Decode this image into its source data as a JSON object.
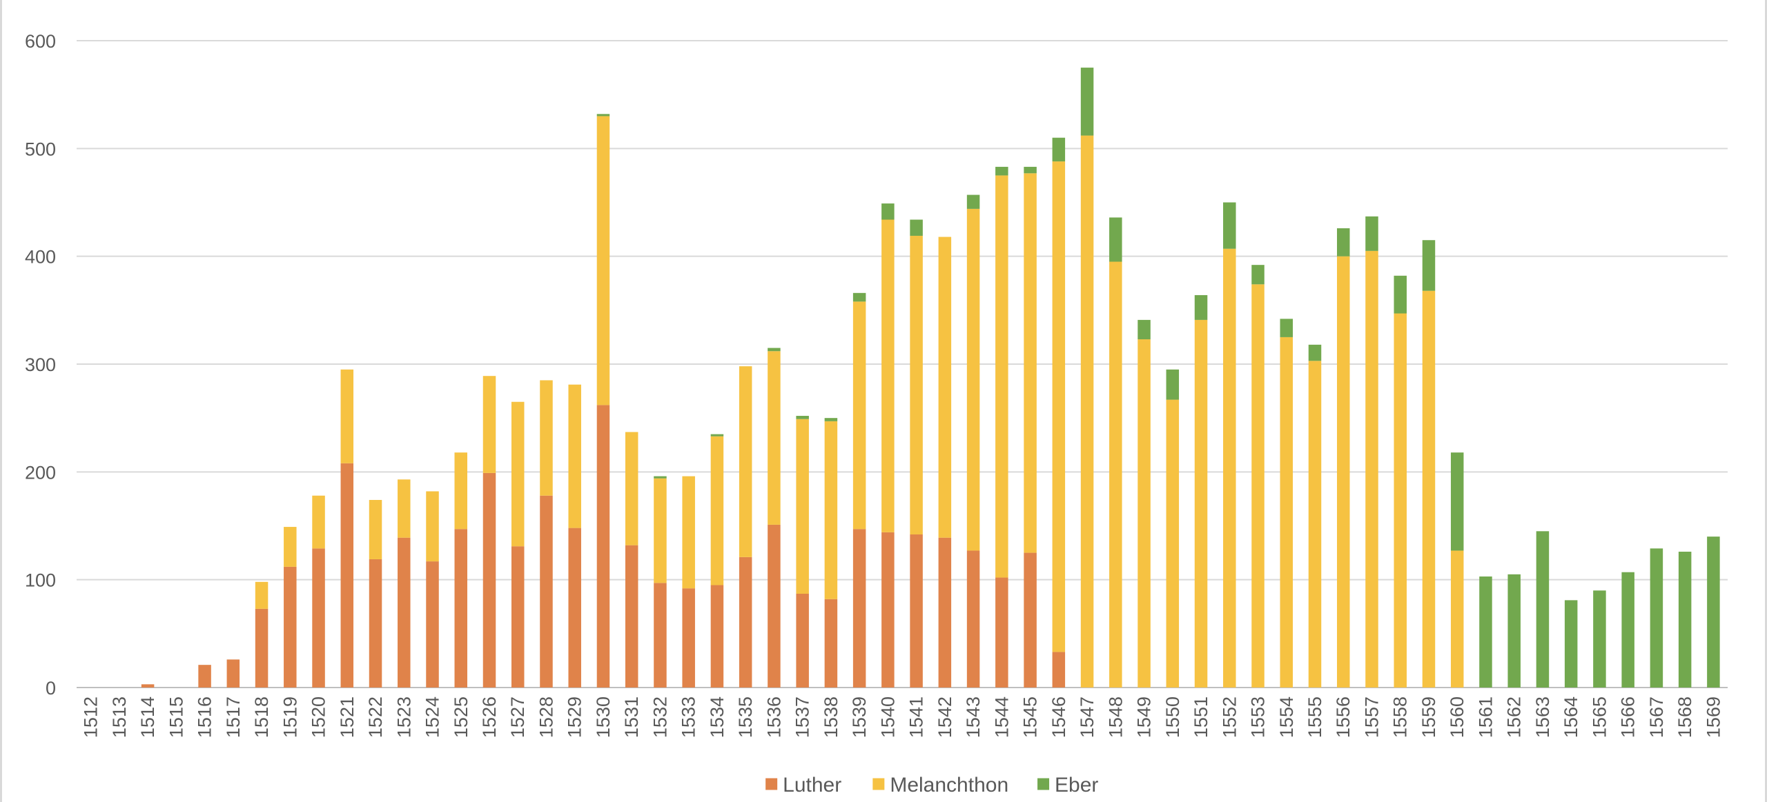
{
  "chart_data": {
    "type": "bar",
    "stacked": true,
    "title": "",
    "xlabel": "",
    "ylabel": "",
    "ylim": [
      0,
      600
    ],
    "yticks": [
      "0",
      "100",
      "200",
      "300",
      "400",
      "500",
      "600"
    ],
    "grid": true,
    "legend_position": "bottom-center",
    "categories": [
      "1512",
      "1513",
      "1514",
      "1515",
      "1516",
      "1517",
      "1518",
      "1519",
      "1520",
      "1521",
      "1522",
      "1523",
      "1524",
      "1525",
      "1526",
      "1527",
      "1528",
      "1529",
      "1530",
      "1531",
      "1532",
      "1533",
      "1534",
      "1535",
      "1536",
      "1537",
      "1538",
      "1539",
      "1540",
      "1541",
      "1542",
      "1543",
      "1544",
      "1545",
      "1546",
      "1547",
      "1548",
      "1549",
      "1550",
      "1551",
      "1552",
      "1553",
      "1554",
      "1555",
      "1556",
      "1557",
      "1558",
      "1559",
      "1560",
      "1561",
      "1562",
      "1563",
      "1564",
      "1565",
      "1566",
      "1567",
      "1568",
      "1569"
    ],
    "series": [
      {
        "name": "Luther",
        "color": "#e0834a",
        "values": [
          0,
          0,
          3,
          0,
          21,
          26,
          73,
          112,
          129,
          208,
          119,
          139,
          117,
          147,
          199,
          131,
          178,
          148,
          262,
          132,
          97,
          92,
          95,
          121,
          151,
          87,
          82,
          147,
          144,
          142,
          139,
          127,
          102,
          125,
          33,
          0,
          0,
          0,
          0,
          0,
          0,
          0,
          0,
          0,
          0,
          0,
          0,
          0,
          0,
          0,
          0,
          0,
          0,
          0,
          0,
          0,
          0,
          0
        ]
      },
      {
        "name": "Melanchthon",
        "color": "#f6c242",
        "values": [
          0,
          0,
          0,
          0,
          0,
          0,
          25,
          37,
          49,
          87,
          55,
          54,
          65,
          71,
          90,
          134,
          107,
          133,
          268,
          105,
          97,
          104,
          138,
          177,
          161,
          162,
          165,
          211,
          290,
          277,
          279,
          317,
          373,
          352,
          455,
          512,
          395,
          323,
          267,
          341,
          407,
          374,
          325,
          303,
          400,
          405,
          347,
          368,
          127,
          0,
          0,
          0,
          0,
          0,
          0,
          0,
          0,
          0
        ]
      },
      {
        "name": "Eber",
        "color": "#72a84e",
        "values": [
          0,
          0,
          0,
          0,
          0,
          0,
          0,
          0,
          0,
          0,
          0,
          0,
          0,
          0,
          0,
          0,
          0,
          0,
          2,
          0,
          2,
          0,
          2,
          0,
          3,
          3,
          3,
          8,
          15,
          15,
          0,
          13,
          8,
          6,
          22,
          63,
          41,
          18,
          28,
          23,
          43,
          18,
          17,
          15,
          26,
          32,
          35,
          47,
          91,
          103,
          105,
          145,
          81,
          90,
          107,
          129,
          126,
          140
        ]
      }
    ]
  }
}
